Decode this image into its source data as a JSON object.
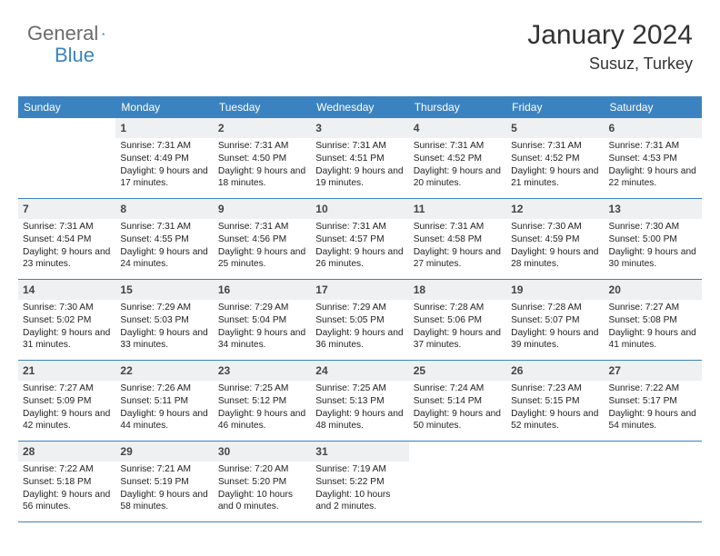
{
  "logo": {
    "text1": "General",
    "text2": "Blue"
  },
  "title": "January 2024",
  "location": "Susuz, Turkey",
  "colors": {
    "header_bg": "#3b83c0",
    "header_text": "#ffffff",
    "daynum_bg": "#eef0f1",
    "text": "#222222",
    "page_bg": "#ffffff"
  },
  "day_names": [
    "Sunday",
    "Monday",
    "Tuesday",
    "Wednesday",
    "Thursday",
    "Friday",
    "Saturday"
  ],
  "weeks": [
    [
      {
        "n": "",
        "sr": "",
        "ss": "",
        "dl": ""
      },
      {
        "n": "1",
        "sr": "Sunrise: 7:31 AM",
        "ss": "Sunset: 4:49 PM",
        "dl": "Daylight: 9 hours and 17 minutes."
      },
      {
        "n": "2",
        "sr": "Sunrise: 7:31 AM",
        "ss": "Sunset: 4:50 PM",
        "dl": "Daylight: 9 hours and 18 minutes."
      },
      {
        "n": "3",
        "sr": "Sunrise: 7:31 AM",
        "ss": "Sunset: 4:51 PM",
        "dl": "Daylight: 9 hours and 19 minutes."
      },
      {
        "n": "4",
        "sr": "Sunrise: 7:31 AM",
        "ss": "Sunset: 4:52 PM",
        "dl": "Daylight: 9 hours and 20 minutes."
      },
      {
        "n": "5",
        "sr": "Sunrise: 7:31 AM",
        "ss": "Sunset: 4:52 PM",
        "dl": "Daylight: 9 hours and 21 minutes."
      },
      {
        "n": "6",
        "sr": "Sunrise: 7:31 AM",
        "ss": "Sunset: 4:53 PM",
        "dl": "Daylight: 9 hours and 22 minutes."
      }
    ],
    [
      {
        "n": "7",
        "sr": "Sunrise: 7:31 AM",
        "ss": "Sunset: 4:54 PM",
        "dl": "Daylight: 9 hours and 23 minutes."
      },
      {
        "n": "8",
        "sr": "Sunrise: 7:31 AM",
        "ss": "Sunset: 4:55 PM",
        "dl": "Daylight: 9 hours and 24 minutes."
      },
      {
        "n": "9",
        "sr": "Sunrise: 7:31 AM",
        "ss": "Sunset: 4:56 PM",
        "dl": "Daylight: 9 hours and 25 minutes."
      },
      {
        "n": "10",
        "sr": "Sunrise: 7:31 AM",
        "ss": "Sunset: 4:57 PM",
        "dl": "Daylight: 9 hours and 26 minutes."
      },
      {
        "n": "11",
        "sr": "Sunrise: 7:31 AM",
        "ss": "Sunset: 4:58 PM",
        "dl": "Daylight: 9 hours and 27 minutes."
      },
      {
        "n": "12",
        "sr": "Sunrise: 7:30 AM",
        "ss": "Sunset: 4:59 PM",
        "dl": "Daylight: 9 hours and 28 minutes."
      },
      {
        "n": "13",
        "sr": "Sunrise: 7:30 AM",
        "ss": "Sunset: 5:00 PM",
        "dl": "Daylight: 9 hours and 30 minutes."
      }
    ],
    [
      {
        "n": "14",
        "sr": "Sunrise: 7:30 AM",
        "ss": "Sunset: 5:02 PM",
        "dl": "Daylight: 9 hours and 31 minutes."
      },
      {
        "n": "15",
        "sr": "Sunrise: 7:29 AM",
        "ss": "Sunset: 5:03 PM",
        "dl": "Daylight: 9 hours and 33 minutes."
      },
      {
        "n": "16",
        "sr": "Sunrise: 7:29 AM",
        "ss": "Sunset: 5:04 PM",
        "dl": "Daylight: 9 hours and 34 minutes."
      },
      {
        "n": "17",
        "sr": "Sunrise: 7:29 AM",
        "ss": "Sunset: 5:05 PM",
        "dl": "Daylight: 9 hours and 36 minutes."
      },
      {
        "n": "18",
        "sr": "Sunrise: 7:28 AM",
        "ss": "Sunset: 5:06 PM",
        "dl": "Daylight: 9 hours and 37 minutes."
      },
      {
        "n": "19",
        "sr": "Sunrise: 7:28 AM",
        "ss": "Sunset: 5:07 PM",
        "dl": "Daylight: 9 hours and 39 minutes."
      },
      {
        "n": "20",
        "sr": "Sunrise: 7:27 AM",
        "ss": "Sunset: 5:08 PM",
        "dl": "Daylight: 9 hours and 41 minutes."
      }
    ],
    [
      {
        "n": "21",
        "sr": "Sunrise: 7:27 AM",
        "ss": "Sunset: 5:09 PM",
        "dl": "Daylight: 9 hours and 42 minutes."
      },
      {
        "n": "22",
        "sr": "Sunrise: 7:26 AM",
        "ss": "Sunset: 5:11 PM",
        "dl": "Daylight: 9 hours and 44 minutes."
      },
      {
        "n": "23",
        "sr": "Sunrise: 7:25 AM",
        "ss": "Sunset: 5:12 PM",
        "dl": "Daylight: 9 hours and 46 minutes."
      },
      {
        "n": "24",
        "sr": "Sunrise: 7:25 AM",
        "ss": "Sunset: 5:13 PM",
        "dl": "Daylight: 9 hours and 48 minutes."
      },
      {
        "n": "25",
        "sr": "Sunrise: 7:24 AM",
        "ss": "Sunset: 5:14 PM",
        "dl": "Daylight: 9 hours and 50 minutes."
      },
      {
        "n": "26",
        "sr": "Sunrise: 7:23 AM",
        "ss": "Sunset: 5:15 PM",
        "dl": "Daylight: 9 hours and 52 minutes."
      },
      {
        "n": "27",
        "sr": "Sunrise: 7:22 AM",
        "ss": "Sunset: 5:17 PM",
        "dl": "Daylight: 9 hours and 54 minutes."
      }
    ],
    [
      {
        "n": "28",
        "sr": "Sunrise: 7:22 AM",
        "ss": "Sunset: 5:18 PM",
        "dl": "Daylight: 9 hours and 56 minutes."
      },
      {
        "n": "29",
        "sr": "Sunrise: 7:21 AM",
        "ss": "Sunset: 5:19 PM",
        "dl": "Daylight: 9 hours and 58 minutes."
      },
      {
        "n": "30",
        "sr": "Sunrise: 7:20 AM",
        "ss": "Sunset: 5:20 PM",
        "dl": "Daylight: 10 hours and 0 minutes."
      },
      {
        "n": "31",
        "sr": "Sunrise: 7:19 AM",
        "ss": "Sunset: 5:22 PM",
        "dl": "Daylight: 10 hours and 2 minutes."
      },
      {
        "n": "",
        "sr": "",
        "ss": "",
        "dl": ""
      },
      {
        "n": "",
        "sr": "",
        "ss": "",
        "dl": ""
      },
      {
        "n": "",
        "sr": "",
        "ss": "",
        "dl": ""
      }
    ]
  ]
}
